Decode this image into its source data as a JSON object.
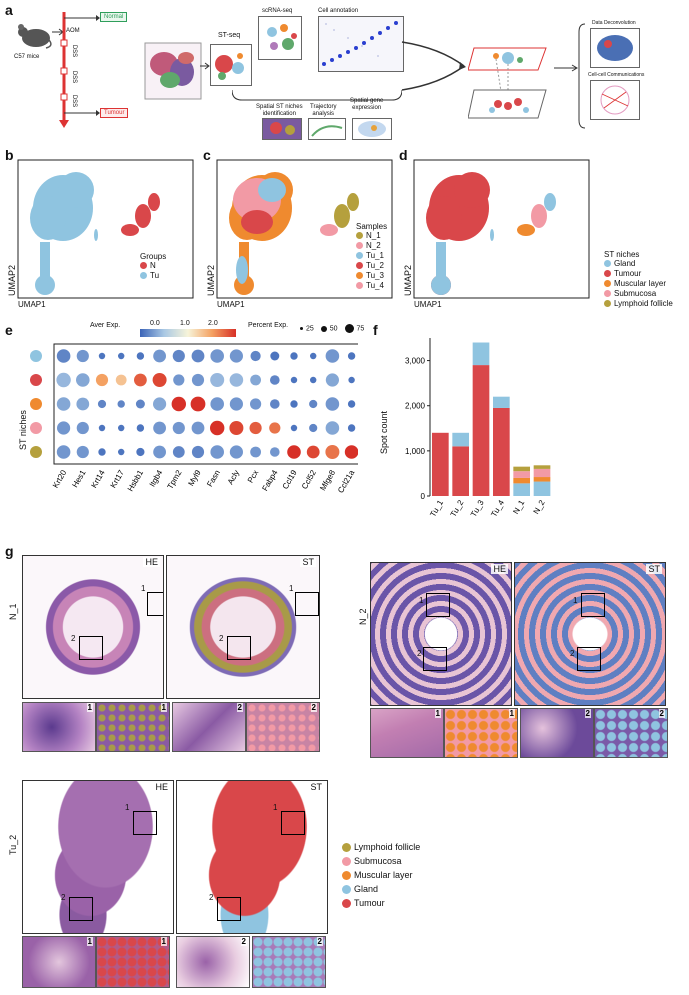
{
  "panels": {
    "a": "a",
    "b": "b",
    "c": "c",
    "d": "d",
    "e": "e",
    "f": "f",
    "g": "g"
  },
  "colors": {
    "tumour": "#d9474a",
    "gland": "#8fc4e0",
    "muscular": "#ef8a2f",
    "submucosa": "#f29aa5",
    "lymphoid": "#b5a03d",
    "normal_box": "#2f9e5b",
    "tumour_box": "#d33"
  },
  "panel_a": {
    "mouse": "C57 mice",
    "aom": "AOM",
    "dss": [
      "DSS",
      "DSS",
      "DSS"
    ],
    "normal": "Normal",
    "tumour": "Tumour",
    "stseq": "ST-seq",
    "scrna": "scRNA-seq",
    "cellannot": "Cell annotation",
    "niches": "Spatial ST niches\nidentification",
    "trajectory": "Trajectory\nanalysis",
    "spatialgene": "Spatial gene\nexpression",
    "deconv": "Data Deconvolution",
    "cellcomm": "Cell-cell Communications"
  },
  "umap": {
    "xlabel": "UMAP1",
    "ylabel": "UMAP2",
    "b": {
      "legend_title": "Groups",
      "items": [
        {
          "label": "N",
          "color": "#d9474a"
        },
        {
          "label": "Tu",
          "color": "#8fc4e0"
        }
      ]
    },
    "c": {
      "legend_title": "Samples",
      "items": [
        {
          "label": "N_1",
          "color": "#b5a03d"
        },
        {
          "label": "N_2",
          "color": "#f29aa5"
        },
        {
          "label": "Tu_1",
          "color": "#8fc4e0"
        },
        {
          "label": "Tu_2",
          "color": "#d9474a"
        },
        {
          "label": "Tu_3",
          "color": "#ef8a2f"
        },
        {
          "label": "Tu_4",
          "color": "#f29aa5"
        }
      ]
    },
    "d": {
      "legend_title": "ST niches",
      "items": [
        {
          "label": "Gland",
          "color": "#8fc4e0"
        },
        {
          "label": "Tumour",
          "color": "#d9474a"
        },
        {
          "label": "Muscular layer",
          "color": "#ef8a2f"
        },
        {
          "label": "Submucosa",
          "color": "#f29aa5"
        },
        {
          "label": "Lymphoid follicle",
          "color": "#b5a03d"
        }
      ]
    }
  },
  "chart_data": [
    {
      "type": "heatmap",
      "ylabel": "ST niches",
      "colorbar_title": "Aver Exp.",
      "colorbar_ticks": [
        "0.0",
        "1.0",
        "2.0"
      ],
      "size_title": "Percent Exp.",
      "size_ticks": [
        "25",
        "50",
        "75"
      ],
      "genes": [
        "Krt20",
        "Hes1",
        "Krt14",
        "Krt17",
        "Hsbb1",
        "Itgb4",
        "Tpm2",
        "Myl9",
        "Fasn",
        "Acly",
        "Pcx",
        "Fabp4",
        "Ccl19",
        "Ccl52",
        "Mfge8",
        "Ccl21a"
      ],
      "niche_colors": [
        "#8fc4e0",
        "#d9474a",
        "#ef8a2f",
        "#f29aa5",
        "#b5a03d"
      ],
      "expr": [
        [
          0.2,
          0.3,
          0.1,
          0.1,
          0.1,
          0.3,
          0.2,
          0.2,
          0.3,
          0.3,
          0.2,
          0.1,
          0.1,
          0.1,
          0.3,
          0.1
        ],
        [
          0.5,
          0.4,
          1.5,
          1.3,
          1.8,
          1.9,
          0.3,
          0.3,
          0.5,
          0.5,
          0.4,
          0.2,
          0.1,
          0.1,
          0.4,
          0.1
        ],
        [
          0.4,
          0.4,
          0.2,
          0.2,
          0.2,
          0.4,
          2.0,
          2.0,
          0.3,
          0.3,
          0.3,
          0.2,
          0.1,
          0.2,
          0.3,
          0.1
        ],
        [
          0.3,
          0.3,
          0.1,
          0.1,
          0.1,
          0.3,
          0.3,
          0.3,
          2.0,
          1.9,
          1.8,
          1.7,
          0.1,
          0.2,
          0.4,
          0.1
        ],
        [
          0.3,
          0.3,
          0.1,
          0.1,
          0.1,
          0.3,
          0.2,
          0.2,
          0.3,
          0.3,
          0.3,
          0.3,
          2.0,
          1.9,
          1.7,
          2.0
        ]
      ],
      "pct": [
        [
          70,
          55,
          10,
          10,
          15,
          60,
          55,
          60,
          70,
          65,
          35,
          25,
          15,
          10,
          70,
          15
        ],
        [
          80,
          70,
          55,
          40,
          60,
          75,
          45,
          55,
          75,
          70,
          40,
          30,
          10,
          10,
          65,
          10
        ],
        [
          70,
          60,
          20,
          15,
          25,
          65,
          80,
          85,
          70,
          65,
          45,
          30,
          15,
          20,
          70,
          15
        ],
        [
          65,
          55,
          10,
          10,
          15,
          60,
          55,
          60,
          80,
          75,
          55,
          45,
          10,
          20,
          70,
          15
        ],
        [
          70,
          55,
          15,
          10,
          20,
          60,
          50,
          55,
          70,
          65,
          40,
          30,
          70,
          60,
          75,
          70
        ]
      ]
    },
    {
      "type": "bar",
      "ylabel": "Spot count",
      "ylim": [
        0,
        3500
      ],
      "yticks": [
        "0",
        "1,000",
        "2,000",
        "3,000"
      ],
      "categories": [
        "Tu_1",
        "Tu_2",
        "Tu_3",
        "Tu_4",
        "N_1",
        "N_2"
      ],
      "series": [
        {
          "name": "Tumour",
          "color": "#d9474a",
          "values": [
            1400,
            1100,
            2900,
            1950,
            0,
            0
          ]
        },
        {
          "name": "Gland",
          "color": "#8fc4e0",
          "values": [
            0,
            300,
            500,
            250,
            280,
            320
          ]
        },
        {
          "name": "Muscular layer",
          "color": "#ef8a2f",
          "values": [
            0,
            0,
            0,
            0,
            120,
            100
          ]
        },
        {
          "name": "Submucosa",
          "color": "#f29aa5",
          "values": [
            0,
            0,
            0,
            0,
            150,
            180
          ]
        },
        {
          "name": "Lymphoid follicle",
          "color": "#b5a03d",
          "values": [
            0,
            0,
            0,
            0,
            100,
            80
          ]
        }
      ]
    }
  ],
  "panel_g": {
    "he": "HE",
    "st": "ST",
    "n1": "N_1",
    "n2": "N_2",
    "tu2": "Tu_2",
    "one": "1",
    "two": "2",
    "legend": [
      {
        "label": "Lymphoid follicle",
        "color": "#b5a03d"
      },
      {
        "label": "Submucosa",
        "color": "#f29aa5"
      },
      {
        "label": "Muscular layer",
        "color": "#ef8a2f"
      },
      {
        "label": "Gland",
        "color": "#8fc4e0"
      },
      {
        "label": "Tumour",
        "color": "#d9474a"
      }
    ]
  }
}
